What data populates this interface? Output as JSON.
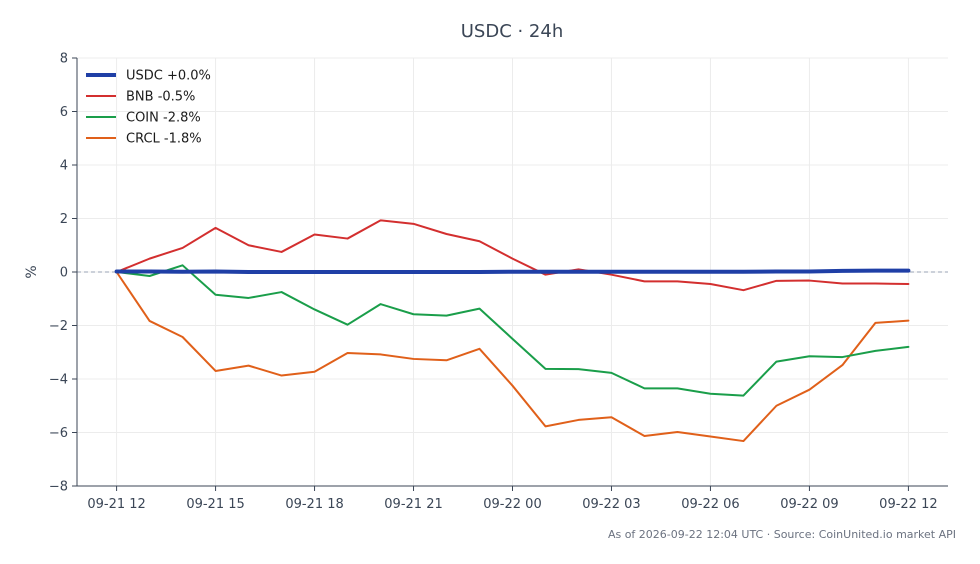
{
  "chart_data": {
    "type": "line",
    "title": "USDC · 24h",
    "ylabel": "%",
    "ylim": [
      -8,
      8
    ],
    "yticks": [
      8,
      6,
      4,
      2,
      0,
      -2,
      -4,
      -6,
      -8
    ],
    "yticks_label": [
      "8",
      "6",
      "4",
      "2",
      "0",
      "−2",
      "−4",
      "−6",
      "−8"
    ],
    "xlim": [
      -1.2,
      25.2
    ],
    "xticks": [
      0,
      3,
      6,
      9,
      12,
      15,
      18,
      21,
      24
    ],
    "xtick_labels": [
      "09-21 12",
      "09-21 15",
      "09-21 18",
      "09-21 21",
      "09-22 00",
      "09-22 03",
      "09-22 06",
      "09-22 09",
      "09-22 12"
    ],
    "grid": true,
    "legend_position": "top-left",
    "x": [
      0,
      1,
      2,
      3,
      4,
      5,
      6,
      7,
      8,
      9,
      10,
      11,
      12,
      13,
      14,
      15,
      16,
      17,
      18,
      19,
      20,
      21,
      22,
      23,
      24
    ],
    "series": [
      {
        "name": "USDC +0.0%",
        "color": "#1f3fa6",
        "width": 4,
        "values": [
          0.02,
          0.02,
          0.01,
          0.02,
          0.0,
          0.0,
          0.0,
          0.0,
          0.0,
          0.0,
          0.0,
          0.0,
          0.01,
          0.01,
          0.01,
          0.01,
          0.01,
          0.01,
          0.01,
          0.01,
          0.02,
          0.02,
          0.04,
          0.05,
          0.05
        ]
      },
      {
        "name": "BNB -0.5%",
        "color": "#d32f2f",
        "width": 2,
        "values": [
          0.0,
          0.5,
          0.9,
          1.65,
          1.0,
          0.75,
          1.4,
          1.25,
          1.93,
          1.8,
          1.42,
          1.15,
          0.5,
          -0.1,
          0.1,
          -0.1,
          -0.35,
          -0.35,
          -0.45,
          -0.68,
          -0.33,
          -0.32,
          -0.43,
          -0.43,
          -0.45
        ]
      },
      {
        "name": "COIN -2.8%",
        "color": "#1a9e4a",
        "width": 2,
        "values": [
          0.0,
          -0.15,
          0.25,
          -0.85,
          -0.97,
          -0.75,
          -1.4,
          -1.97,
          -1.2,
          -1.58,
          -1.63,
          -1.37,
          -2.5,
          -3.62,
          -3.63,
          -3.77,
          -4.35,
          -4.35,
          -4.55,
          -4.62,
          -3.35,
          -3.15,
          -3.18,
          -2.95,
          -2.8
        ]
      },
      {
        "name": "CRCL -1.8%",
        "color": "#e0601a",
        "width": 2,
        "values": [
          0.0,
          -1.83,
          -2.43,
          -3.7,
          -3.5,
          -3.87,
          -3.73,
          -3.03,
          -3.08,
          -3.25,
          -3.3,
          -2.87,
          -4.25,
          -5.77,
          -5.53,
          -5.43,
          -6.13,
          -5.98,
          -6.15,
          -6.32,
          -5.0,
          -4.4,
          -3.48,
          -1.9,
          -1.82
        ]
      }
    ],
    "footer": "As of 2026-09-22 12:04 UTC · Source: CoinUnited.io market API"
  }
}
